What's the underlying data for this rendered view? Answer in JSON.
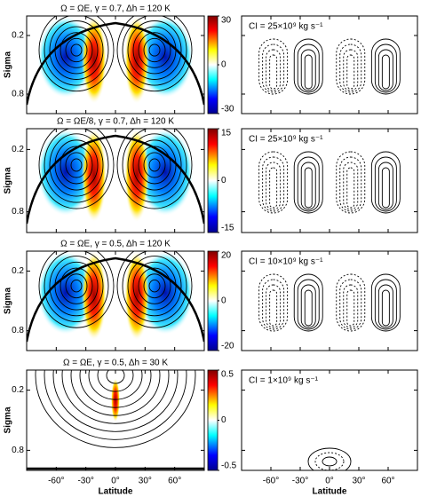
{
  "chart_data": [
    {
      "type": "contour",
      "title": "Ω = ΩE, γ = 0.7, Δh = 120 K",
      "ylabel": "Sigma",
      "ci_label": "CI = 25×10⁹ kg s⁻¹",
      "xlim": [
        -90,
        90
      ],
      "xticks": [
        -60,
        -30,
        0,
        30,
        60
      ],
      "ylim": [
        1,
        0
      ],
      "yticks": [
        0.2,
        0.8
      ],
      "clim": [
        -30,
        30
      ],
      "cticks": [
        -30,
        0,
        30
      ]
    },
    {
      "type": "contour",
      "title": "Ω = ΩE/8, γ = 0.7, Δh = 120 K",
      "ylabel": "Sigma",
      "ci_label": "CI = 25×10⁹ kg s⁻¹",
      "xlim": [
        -90,
        90
      ],
      "xticks": [
        -60,
        -30,
        0,
        30,
        60
      ],
      "ylim": [
        1,
        0
      ],
      "yticks": [
        0.2,
        0.8
      ],
      "clim": [
        -15,
        15
      ],
      "cticks": [
        -15,
        0,
        15
      ]
    },
    {
      "type": "contour",
      "title": "Ω = ΩE, γ = 0.5, Δh = 120 K",
      "ylabel": "Sigma",
      "ci_label": "CI = 10×10⁹ kg s⁻¹",
      "xlim": [
        -90,
        90
      ],
      "xticks": [
        -60,
        -30,
        0,
        30,
        60
      ],
      "ylim": [
        1,
        0
      ],
      "yticks": [
        0.2,
        0.8
      ],
      "clim": [
        -20,
        20
      ],
      "cticks": [
        -20,
        0,
        20
      ]
    },
    {
      "type": "contour",
      "title": "Ω = ΩE, γ = 0.5, Δh = 30 K",
      "ylabel": "Sigma",
      "xlabel": "Latitude",
      "ci_label": "CI = 1×10⁹ kg s⁻¹",
      "xlim": [
        -90,
        90
      ],
      "xticks": [
        {
          "value": -60,
          "label": "-60°"
        },
        {
          "value": -30,
          "label": "-30°"
        },
        {
          "value": 0,
          "label": "0°"
        },
        {
          "value": 30,
          "label": "30°"
        },
        {
          "value": 60,
          "label": "60°"
        }
      ],
      "ylim": [
        1,
        0
      ],
      "yticks": [
        0.2,
        0.8
      ],
      "clim": [
        -0.5,
        0.5
      ],
      "cticks": [
        -0.5,
        0,
        0.5
      ]
    }
  ]
}
